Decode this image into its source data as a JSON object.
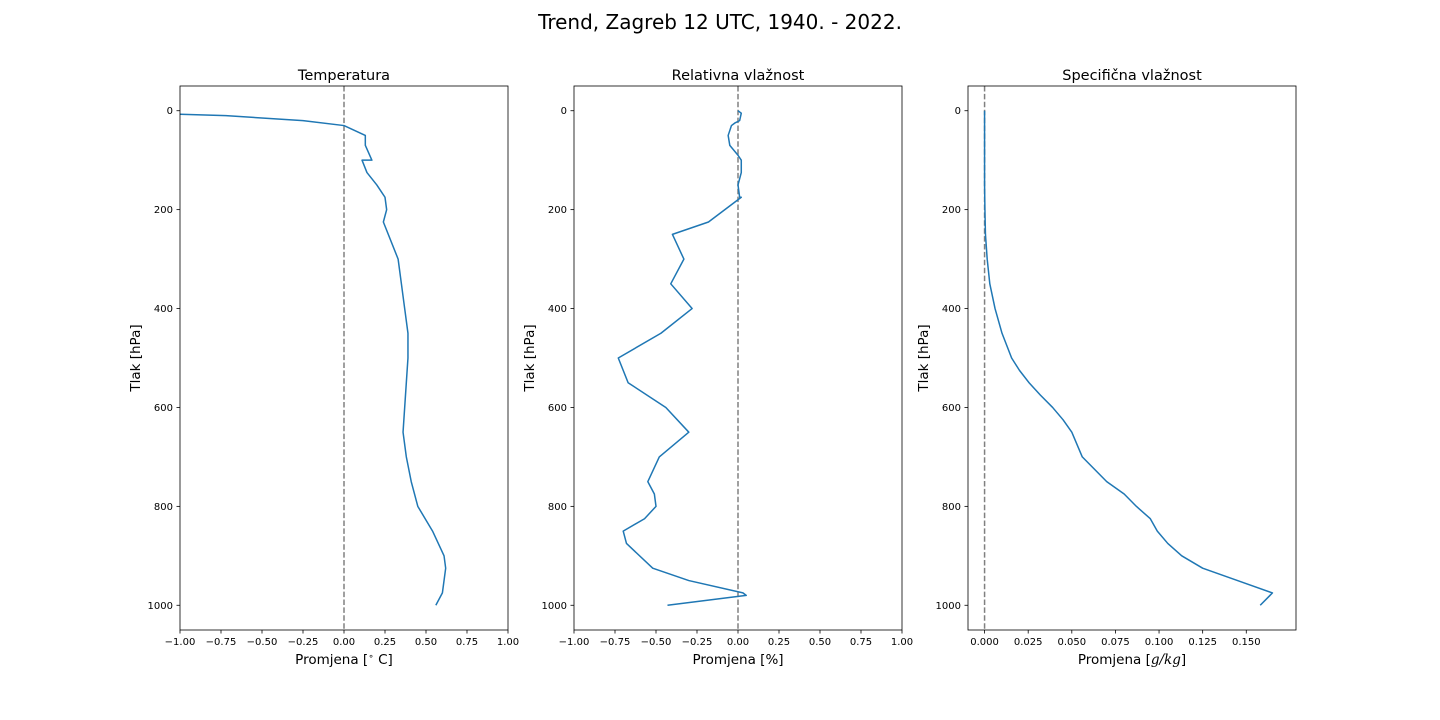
{
  "title": "Trend, Zagreb 12 UTC, 1940. - 2022.",
  "series_color": "#1f77b4",
  "zero_line_color": "#808080",
  "chart_data": [
    {
      "type": "line",
      "title": "Temperatura",
      "xlabel": "Promjena [$^\\circ$ C]",
      "xlabel_parts": [
        "Promjena [",
        "∘",
        " C]"
      ],
      "ylabel": "Tlak [hPa]",
      "xlim": [
        -1.0,
        1.0
      ],
      "ylim": [
        1050,
        -50
      ],
      "y_inverted": true,
      "xticks": [
        -1.0,
        -0.75,
        -0.5,
        -0.25,
        0.0,
        0.25,
        0.5,
        0.75,
        1.0
      ],
      "xtick_labels": [
        "−1.00",
        "−0.75",
        "−0.50",
        "−0.25",
        "0.00",
        "0.25",
        "0.50",
        "0.75",
        "1.00"
      ],
      "yticks": [
        0,
        200,
        400,
        600,
        800,
        1000
      ],
      "ytick_labels": [
        "0",
        "200",
        "400",
        "600",
        "800",
        "1000"
      ],
      "zero_line": 0,
      "points": [
        [
          -1.0,
          7
        ],
        [
          -0.72,
          10
        ],
        [
          -0.25,
          20
        ],
        [
          0.0,
          30
        ],
        [
          0.13,
          50
        ],
        [
          0.13,
          70
        ],
        [
          0.17,
          100
        ],
        [
          0.11,
          100
        ],
        [
          0.14,
          125
        ],
        [
          0.2,
          150
        ],
        [
          0.25,
          175
        ],
        [
          0.26,
          200
        ],
        [
          0.24,
          225
        ],
        [
          0.33,
          300
        ],
        [
          0.35,
          350
        ],
        [
          0.37,
          400
        ],
        [
          0.39,
          450
        ],
        [
          0.39,
          500
        ],
        [
          0.38,
          550
        ],
        [
          0.37,
          600
        ],
        [
          0.36,
          650
        ],
        [
          0.38,
          700
        ],
        [
          0.41,
          750
        ],
        [
          0.45,
          800
        ],
        [
          0.54,
          850
        ],
        [
          0.61,
          900
        ],
        [
          0.62,
          925
        ],
        [
          0.6,
          975
        ],
        [
          0.56,
          1000
        ]
      ]
    },
    {
      "type": "line",
      "title": "Relativna vlažnost",
      "xlabel": "Promjena [%]",
      "ylabel": "Tlak [hPa]",
      "xlim": [
        -1.0,
        1.0
      ],
      "ylim": [
        1050,
        -50
      ],
      "y_inverted": true,
      "xticks": [
        -1.0,
        -0.75,
        -0.5,
        -0.25,
        0.0,
        0.25,
        0.5,
        0.75,
        1.0
      ],
      "xtick_labels": [
        "−1.00",
        "−0.75",
        "−0.50",
        "−0.25",
        "0.00",
        "0.25",
        "0.50",
        "0.75",
        "1.00"
      ],
      "yticks": [
        0,
        200,
        400,
        600,
        800,
        1000
      ],
      "ytick_labels": [
        "0",
        "200",
        "400",
        "600",
        "800",
        "1000"
      ],
      "zero_line": 0,
      "points": [
        [
          0.0,
          0
        ],
        [
          0.02,
          5
        ],
        [
          0.01,
          20
        ],
        [
          -0.02,
          25
        ],
        [
          -0.04,
          30
        ],
        [
          -0.06,
          50
        ],
        [
          -0.05,
          70
        ],
        [
          0.0,
          90
        ],
        [
          0.02,
          100
        ],
        [
          0.02,
          125
        ],
        [
          0.0,
          150
        ],
        [
          0.01,
          175
        ],
        [
          0.02,
          175
        ],
        [
          -0.18,
          225
        ],
        [
          -0.4,
          250
        ],
        [
          -0.33,
          300
        ],
        [
          -0.41,
          350
        ],
        [
          -0.28,
          400
        ],
        [
          -0.47,
          450
        ],
        [
          -0.73,
          500
        ],
        [
          -0.67,
          550
        ],
        [
          -0.44,
          600
        ],
        [
          -0.3,
          650
        ],
        [
          -0.48,
          700
        ],
        [
          -0.55,
          750
        ],
        [
          -0.51,
          775
        ],
        [
          -0.5,
          800
        ],
        [
          -0.57,
          825
        ],
        [
          -0.7,
          850
        ],
        [
          -0.68,
          875
        ],
        [
          -0.52,
          925
        ],
        [
          -0.3,
          950
        ],
        [
          0.03,
          975
        ],
        [
          0.05,
          980
        ],
        [
          -0.43,
          1000
        ]
      ]
    },
    {
      "type": "line",
      "title": "Specifična vlažnost",
      "xlabel": "Promjena [$g/kg$]",
      "xlabel_parts": [
        "Promjena [",
        "g/kg",
        "]"
      ],
      "ylabel": "Tlak [hPa]",
      "xlim": [
        -0.0095,
        0.1785
      ],
      "ylim": [
        1050,
        -50
      ],
      "y_inverted": true,
      "xticks": [
        0.0,
        0.025,
        0.05,
        0.075,
        0.1,
        0.125,
        0.15
      ],
      "xtick_labels": [
        "0.000",
        "0.025",
        "0.050",
        "0.075",
        "0.100",
        "0.125",
        "0.150"
      ],
      "yticks": [
        0,
        200,
        400,
        600,
        800,
        1000
      ],
      "ytick_labels": [
        "0",
        "200",
        "400",
        "600",
        "800",
        "1000"
      ],
      "zero_line": 0,
      "points": [
        [
          0.0,
          0
        ],
        [
          0.0,
          50
        ],
        [
          0.0,
          100
        ],
        [
          0.0,
          150
        ],
        [
          0.0002,
          200
        ],
        [
          0.0005,
          250
        ],
        [
          0.0015,
          300
        ],
        [
          0.003,
          350
        ],
        [
          0.006,
          400
        ],
        [
          0.01,
          450
        ],
        [
          0.0155,
          500
        ],
        [
          0.02,
          525
        ],
        [
          0.0255,
          550
        ],
        [
          0.032,
          575
        ],
        [
          0.039,
          600
        ],
        [
          0.045,
          625
        ],
        [
          0.05,
          650
        ],
        [
          0.053,
          675
        ],
        [
          0.056,
          700
        ],
        [
          0.063,
          725
        ],
        [
          0.07,
          750
        ],
        [
          0.08,
          775
        ],
        [
          0.087,
          800
        ],
        [
          0.095,
          825
        ],
        [
          0.099,
          850
        ],
        [
          0.105,
          875
        ],
        [
          0.113,
          900
        ],
        [
          0.125,
          925
        ],
        [
          0.145,
          950
        ],
        [
          0.165,
          975
        ],
        [
          0.158,
          1000
        ]
      ]
    }
  ]
}
